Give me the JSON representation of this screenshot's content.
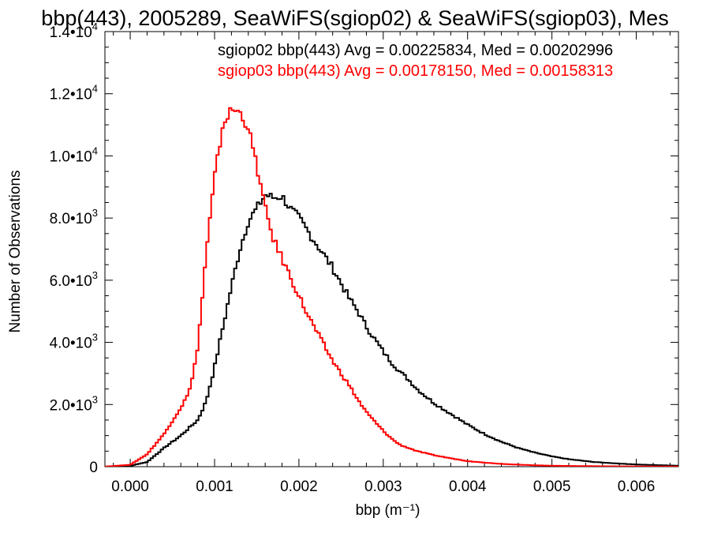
{
  "chart_data": {
    "type": "line",
    "title": "bbp(443), 2005289, SeaWiFS(sgiop02) & SeaWiFS(sgiop03), Mes",
    "xlabel": "bbp (m⁻¹)",
    "ylabel": "Number of Observations",
    "xlim": [
      -0.0003,
      0.0065
    ],
    "ylim": [
      0,
      14000
    ],
    "x_ticks": [
      0.0,
      0.001,
      0.002,
      0.003,
      0.004,
      0.005,
      0.006
    ],
    "x_tick_labels": [
      "0.000",
      "0.001",
      "0.002",
      "0.003",
      "0.004",
      "0.005",
      "0.006"
    ],
    "y_ticks": [
      0,
      2000,
      4000,
      6000,
      8000,
      10000,
      12000,
      14000
    ],
    "y_tick_labels": [
      {
        "base": "0",
        "exp": ""
      },
      {
        "base": "2.0•10",
        "exp": "3"
      },
      {
        "base": "4.0•10",
        "exp": "3"
      },
      {
        "base": "6.0•10",
        "exp": "3"
      },
      {
        "base": "8.0•10",
        "exp": "3"
      },
      {
        "base": "1.0•10",
        "exp": "4"
      },
      {
        "base": "1.2•10",
        "exp": "4"
      },
      {
        "base": "1.4•10",
        "exp": "4"
      }
    ],
    "grid": false,
    "legend_placement": "top-right",
    "series": [
      {
        "name": "sgiop02 bbp(443) Avg = 0.00225834, Med = 0.00202996",
        "color": "#000000",
        "x": [
          -0.0003,
          0.0,
          0.0002,
          0.0004,
          0.0006,
          0.0008,
          0.0009,
          0.001,
          0.0011,
          0.0012,
          0.0013,
          0.0014,
          0.0015,
          0.0016,
          0.0017,
          0.0018,
          0.0019,
          0.002,
          0.0021,
          0.0022,
          0.0023,
          0.0024,
          0.0025,
          0.0026,
          0.0027,
          0.0028,
          0.0029,
          0.003,
          0.0031,
          0.0032,
          0.0033,
          0.0034,
          0.0036,
          0.0038,
          0.004,
          0.0042,
          0.0044,
          0.0046,
          0.0048,
          0.005,
          0.0052,
          0.0055,
          0.0058,
          0.006,
          0.0065
        ],
        "y": [
          0,
          30,
          150,
          600,
          1000,
          1500,
          2100,
          3200,
          4500,
          5800,
          7000,
          7900,
          8300,
          8750,
          8650,
          8700,
          8300,
          8000,
          7600,
          7200,
          6800,
          6400,
          5900,
          5400,
          5000,
          4500,
          4100,
          3700,
          3350,
          3050,
          2800,
          2500,
          2050,
          1700,
          1350,
          1050,
          800,
          600,
          450,
          330,
          240,
          150,
          100,
          70,
          30
        ]
      },
      {
        "name": "sgiop03 bbp(443) Avg = 0.00178150, Med = 0.00158313",
        "color": "#ff0000",
        "x": [
          -0.0003,
          0.0,
          0.0002,
          0.0004,
          0.0006,
          0.0007,
          0.0008,
          0.0009,
          0.001,
          0.0011,
          0.0012,
          0.0013,
          0.0014,
          0.0015,
          0.0016,
          0.0017,
          0.0018,
          0.0019,
          0.002,
          0.0021,
          0.0022,
          0.0023,
          0.0024,
          0.0025,
          0.0026,
          0.0027,
          0.0028,
          0.0029,
          0.003,
          0.0031,
          0.0032,
          0.0034,
          0.0036,
          0.0038,
          0.004,
          0.0042,
          0.0044,
          0.0046,
          0.0048,
          0.005,
          0.0055,
          0.006,
          0.0065
        ],
        "y": [
          0,
          60,
          400,
          1050,
          1900,
          2400,
          3800,
          6800,
          9300,
          11000,
          11500,
          11400,
          10900,
          9700,
          8300,
          7300,
          6700,
          6100,
          5500,
          4900,
          4400,
          3900,
          3400,
          3000,
          2600,
          2150,
          1750,
          1450,
          1150,
          900,
          700,
          500,
          370,
          270,
          180,
          130,
          90,
          65,
          45,
          30,
          15,
          8,
          3
        ]
      }
    ]
  }
}
